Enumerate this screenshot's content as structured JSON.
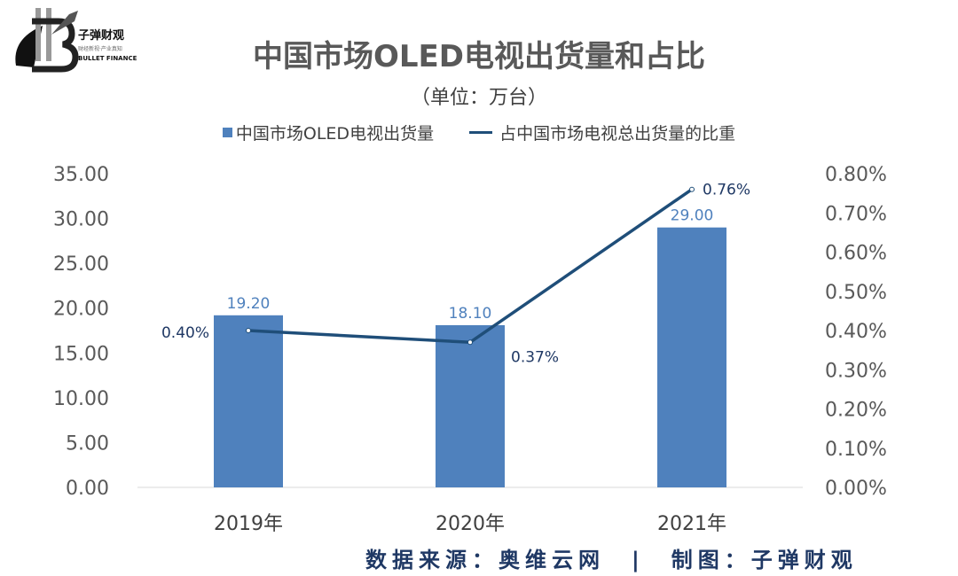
{
  "logo": {
    "name": "子弹财观",
    "tagline": "财经新视·产业真知",
    "english": "BULLET FINANCE"
  },
  "chart_data": {
    "type": "bar+line",
    "title": "中国市场OLED电视出货量和占比",
    "subtitle": "（单位：万台）",
    "categories": [
      "2019年",
      "2020年",
      "2021年"
    ],
    "series": [
      {
        "name": "中国市场OLED电视出货量",
        "type": "bar",
        "axis": "left",
        "values": [
          19.2,
          18.1,
          29.0
        ],
        "labels": [
          "19.20",
          "18.10",
          "29.00"
        ],
        "color": "#4f81bd"
      },
      {
        "name": "占中国市场电视总出货量的比重",
        "type": "line",
        "axis": "right",
        "values": [
          0.4,
          0.37,
          0.76
        ],
        "labels": [
          "0.40%",
          "0.37%",
          "0.76%"
        ],
        "color": "#1f4e79"
      }
    ],
    "left_axis": {
      "ylim": [
        0,
        35
      ],
      "ticks": [
        "0.00",
        "5.00",
        "10.00",
        "15.00",
        "20.00",
        "25.00",
        "30.00",
        "35.00"
      ]
    },
    "right_axis": {
      "ylim": [
        0,
        0.8
      ],
      "ticks": [
        "0.00%",
        "0.10%",
        "0.20%",
        "0.30%",
        "0.40%",
        "0.50%",
        "0.60%",
        "0.70%",
        "0.80%"
      ]
    },
    "legend": "top",
    "grid": false
  },
  "footer": "数据来源：奥维云网　|　制图：子弹财观"
}
